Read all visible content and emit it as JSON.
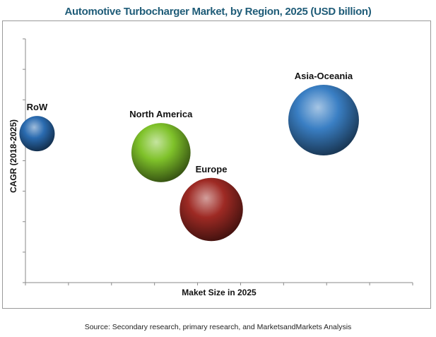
{
  "title": "Automotive Turbocharger Market, by Region, 2025 (USD billion)",
  "source": "Source: Secondary research, primary research, and MarketsandMarkets Analysis",
  "chart_data": {
    "type": "bubble",
    "xlabel": "Maket Size in 2025",
    "ylabel": "CAGR (2018-2025)",
    "grid": false,
    "tick_labels": false,
    "series": [
      {
        "name": "RoW",
        "x": 0.3,
        "y": 5.5,
        "size": 0.5,
        "color": "#2a6bb0"
      },
      {
        "name": "North America",
        "x": 3.5,
        "y": 4.8,
        "size": 1.4,
        "color": "#7fc22a"
      },
      {
        "name": "Europe",
        "x": 4.8,
        "y": 2.7,
        "size": 1.6,
        "color": "#9e2a24"
      },
      {
        "name": "Asia-Oceania",
        "x": 7.7,
        "y": 6.0,
        "size": 2.0,
        "color": "#3a7fc4"
      }
    ],
    "xlim": [
      0,
      10
    ],
    "ylim": [
      0,
      9
    ]
  }
}
